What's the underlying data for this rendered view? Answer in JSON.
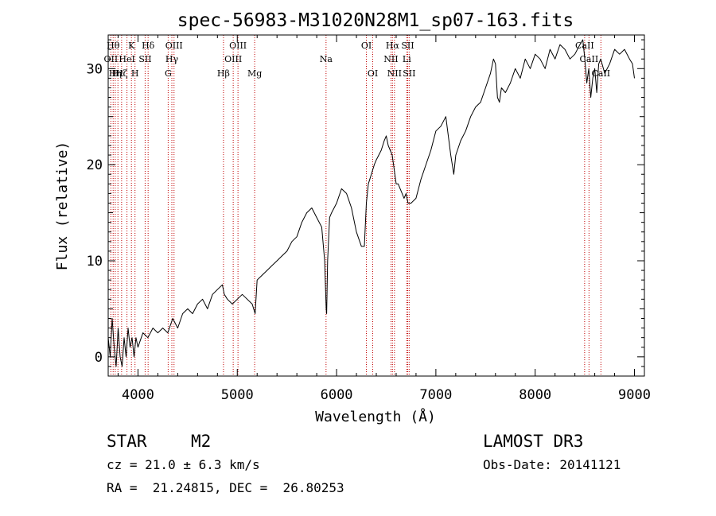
{
  "chart_data": {
    "type": "line",
    "title": "spec-56983-M31020N28M1_sp07-163.fits",
    "xlabel": "Wavelength (Å)",
    "ylabel": "Flux (relative)",
    "xlim": [
      3700,
      9100
    ],
    "ylim": [
      -2,
      33.5
    ],
    "x_ticks": [
      4000,
      5000,
      6000,
      7000,
      8000,
      9000
    ],
    "y_ticks": [
      0,
      10,
      20,
      30
    ],
    "grid": false,
    "series": [
      {
        "name": "spectrum",
        "x": [
          3700,
          3720,
          3740,
          3760,
          3780,
          3800,
          3820,
          3840,
          3860,
          3880,
          3900,
          3920,
          3940,
          3960,
          3980,
          4000,
          4050,
          4100,
          4150,
          4200,
          4250,
          4300,
          4350,
          4400,
          4450,
          4500,
          4550,
          4600,
          4650,
          4700,
          4750,
          4800,
          4850,
          4870,
          4900,
          4950,
          5000,
          5050,
          5100,
          5150,
          5180,
          5200,
          5250,
          5300,
          5350,
          5400,
          5450,
          5500,
          5550,
          5600,
          5650,
          5700,
          5750,
          5800,
          5850,
          5880,
          5895,
          5900,
          5910,
          5930,
          5950,
          6000,
          6050,
          6100,
          6150,
          6200,
          6250,
          6280,
          6300,
          6320,
          6350,
          6380,
          6400,
          6450,
          6480,
          6500,
          6520,
          6540,
          6560,
          6580,
          6600,
          6620,
          6640,
          6660,
          6680,
          6700,
          6720,
          6750,
          6800,
          6850,
          6900,
          6950,
          7000,
          7050,
          7100,
          7150,
          7180,
          7200,
          7250,
          7300,
          7350,
          7400,
          7450,
          7500,
          7550,
          7580,
          7600,
          7620,
          7640,
          7660,
          7700,
          7750,
          7800,
          7850,
          7900,
          7950,
          8000,
          8050,
          8100,
          8150,
          8200,
          8250,
          8300,
          8350,
          8400,
          8450,
          8480,
          8500,
          8520,
          8540,
          8560,
          8580,
          8600,
          8620,
          8640,
          8660,
          8700,
          8750,
          8800,
          8850,
          8900,
          8950,
          8980,
          9000
        ],
        "values": [
          2,
          0,
          4,
          1,
          -1,
          3,
          0,
          -1,
          2,
          0,
          3,
          1,
          2,
          0,
          2,
          1,
          2.5,
          2,
          3,
          2.5,
          3,
          2.5,
          4,
          3,
          4.5,
          5,
          4.5,
          5.5,
          6,
          5,
          6.5,
          7,
          7.5,
          6.5,
          6,
          5.5,
          6,
          6.5,
          6,
          5.5,
          4.5,
          8,
          8.5,
          9,
          9.5,
          10,
          10.5,
          11,
          12,
          12.5,
          14,
          15,
          15.5,
          14.5,
          13.5,
          10,
          5,
          4.5,
          10,
          14.5,
          15,
          16,
          17.5,
          17,
          15.5,
          13,
          11.5,
          11.5,
          16,
          18,
          19,
          20,
          20.5,
          21.5,
          22.5,
          23,
          22,
          21.5,
          21,
          19.5,
          18,
          18,
          17.5,
          17,
          16.5,
          17,
          16,
          16,
          16.5,
          18.5,
          20,
          21.5,
          23.5,
          24,
          25,
          21,
          19,
          21,
          22.5,
          23.5,
          25,
          26,
          26.5,
          28,
          29.5,
          31,
          30.5,
          27,
          26.5,
          28,
          27.5,
          28.5,
          30,
          29,
          31,
          30,
          31.5,
          31,
          30,
          32,
          31,
          32.5,
          32,
          31,
          31.5,
          32.5,
          33,
          31,
          28.5,
          30,
          27,
          29,
          30,
          27.5,
          30.5,
          31,
          29.5,
          30.5,
          32,
          31.5,
          32,
          31,
          30.5,
          29
        ]
      }
    ],
    "lines": [
      {
        "wavelength": 3727,
        "label": "OII",
        "row": 2
      },
      {
        "wavelength": 3750,
        "label": "Hθ",
        "row": 1
      },
      {
        "wavelength": 3771,
        "label": "Hη",
        "row": 3
      },
      {
        "wavelength": 3798,
        "label": "Hε",
        "row": 3
      },
      {
        "wavelength": 3835,
        "label": "Hζ",
        "row": 3
      },
      {
        "wavelength": 3889,
        "label": "HeI",
        "row": 2
      },
      {
        "wavelength": 3934,
        "label": "K",
        "row": 1
      },
      {
        "wavelength": 3970,
        "label": "H",
        "row": 3
      },
      {
        "wavelength": 4072,
        "label": "SII",
        "row": 2
      },
      {
        "wavelength": 4102,
        "label": "Hδ",
        "row": 1
      },
      {
        "wavelength": 4304,
        "label": "G",
        "row": 3
      },
      {
        "wavelength": 4341,
        "label": "Hγ",
        "row": 2
      },
      {
        "wavelength": 4363,
        "label": "OIII",
        "row": 1
      },
      {
        "wavelength": 4861,
        "label": "Hβ",
        "row": 3
      },
      {
        "wavelength": 4959,
        "label": "OIII",
        "row": 2
      },
      {
        "wavelength": 5007,
        "label": "OIII",
        "row": 1
      },
      {
        "wavelength": 5175,
        "label": "Mg",
        "row": 3
      },
      {
        "wavelength": 5894,
        "label": "Na",
        "row": 2
      },
      {
        "wavelength": 6300,
        "label": "OI",
        "row": 1
      },
      {
        "wavelength": 6364,
        "label": "OI",
        "row": 3
      },
      {
        "wavelength": 6548,
        "label": "NII",
        "row": 2
      },
      {
        "wavelength": 6563,
        "label": "Hα",
        "row": 1
      },
      {
        "wavelength": 6583,
        "label": "NII",
        "row": 3
      },
      {
        "wavelength": 6707,
        "label": "Li",
        "row": 2
      },
      {
        "wavelength": 6716,
        "label": "SII",
        "row": 1
      },
      {
        "wavelength": 6731,
        "label": "SII",
        "row": 3
      },
      {
        "wavelength": 8498,
        "label": "CaII",
        "row": 1
      },
      {
        "wavelength": 8542,
        "label": "CaII",
        "row": 2
      },
      {
        "wavelength": 8662,
        "label": "CaII",
        "row": 3
      }
    ],
    "line_color": "#c00000",
    "spectrum_color": "#000000"
  },
  "info": {
    "object_class": "STAR",
    "subclass": "M2",
    "survey": "LAMOST DR3",
    "redshift": "cz = 21.0 ± 6.3 km/s",
    "obs_date": "Obs-Date: 20141121",
    "coords": "RA =  21.24815, DEC =  26.80253"
  }
}
